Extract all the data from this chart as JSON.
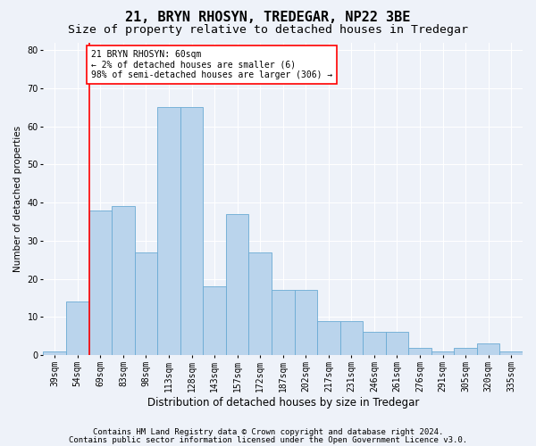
{
  "title1": "21, BRYN RHOSYN, TREDEGAR, NP22 3BE",
  "title2": "Size of property relative to detached houses in Tredegar",
  "xlabel": "Distribution of detached houses by size in Tredegar",
  "ylabel": "Number of detached properties",
  "categories": [
    "39sqm",
    "54sqm",
    "69sqm",
    "83sqm",
    "98sqm",
    "113sqm",
    "128sqm",
    "143sqm",
    "157sqm",
    "172sqm",
    "187sqm",
    "202sqm",
    "217sqm",
    "231sqm",
    "246sqm",
    "261sqm",
    "276sqm",
    "291sqm",
    "305sqm",
    "320sqm",
    "335sqm"
  ],
  "values": [
    1,
    14,
    38,
    39,
    27,
    65,
    65,
    18,
    37,
    27,
    17,
    17,
    9,
    9,
    6,
    6,
    2,
    1,
    2,
    3,
    1
  ],
  "bar_color": "#bad4ec",
  "bar_edge_color": "#6aaad4",
  "annotation_text": "21 BRYN RHOSYN: 60sqm\n← 2% of detached houses are smaller (6)\n98% of semi-detached houses are larger (306) →",
  "annotation_box_color": "white",
  "annotation_box_edge_color": "red",
  "vline_x": 1.5,
  "ylim": [
    0,
    82
  ],
  "yticks": [
    0,
    10,
    20,
    30,
    40,
    50,
    60,
    70,
    80
  ],
  "footer1": "Contains HM Land Registry data © Crown copyright and database right 2024.",
  "footer2": "Contains public sector information licensed under the Open Government Licence v3.0.",
  "bg_color": "#eef2f9",
  "grid_color": "#ffffff",
  "title1_fontsize": 11,
  "title2_fontsize": 9.5,
  "xlabel_fontsize": 8.5,
  "ylabel_fontsize": 7.5,
  "tick_fontsize": 7,
  "annotation_fontsize": 7,
  "footer_fontsize": 6.5
}
